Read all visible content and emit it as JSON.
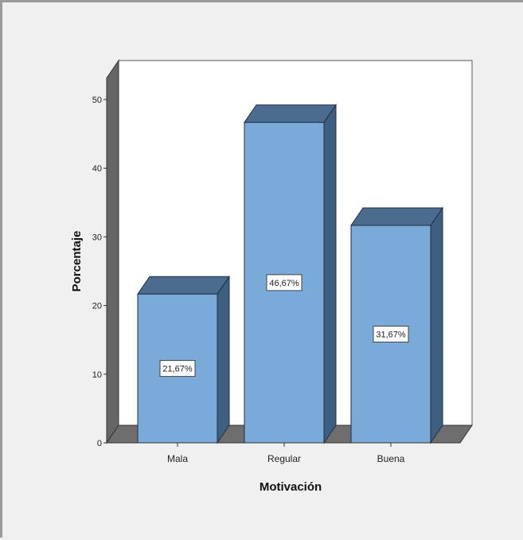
{
  "chart_data": {
    "type": "bar",
    "categories": [
      "Mala",
      "Regular",
      "Buena"
    ],
    "values": [
      21.67,
      46.67,
      31.67
    ],
    "data_labels": [
      "21,67%",
      "46,67%",
      "31,67%"
    ],
    "xlabel": "Motivación",
    "ylabel": "Porcentaje",
    "ylim": [
      0,
      50
    ],
    "yticks": [
      0,
      10,
      20,
      30,
      40,
      50
    ],
    "grid": false,
    "style": "3d",
    "colors": {
      "bar_front": "#7aaad8",
      "bar_top": "#4b6c8e",
      "bar_side": "#3f5f80",
      "wall": "#666666",
      "floor": "#6e6e6e",
      "plot_bg": "#ffffff",
      "background": "#f0f0f0"
    }
  }
}
